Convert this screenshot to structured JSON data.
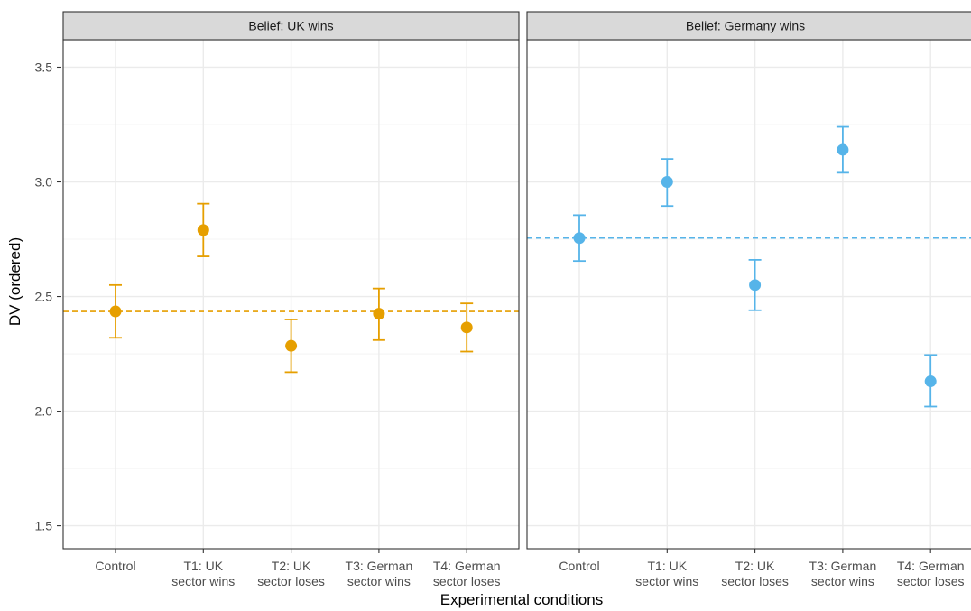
{
  "chart_data": {
    "type": "scatter",
    "ylabel": "DV (ordered)",
    "xlabel": "Experimental conditions",
    "ylim": [
      1.4,
      3.62
    ],
    "yticks": [
      1.5,
      2.0,
      2.5,
      3.0,
      3.5
    ],
    "ytick_labels": [
      "1.5",
      "2.0",
      "2.5",
      "3.0",
      "3.5"
    ],
    "grid": true,
    "categories": [
      [
        "Control"
      ],
      [
        "T1: UK",
        "sector wins"
      ],
      [
        "T2: UK",
        "sector loses"
      ],
      [
        "T3: German",
        "sector wins"
      ],
      [
        "T4: German",
        "sector loses"
      ]
    ],
    "panels": [
      {
        "strip": "Belief: UK wins",
        "color": "#E69F00",
        "reference": 2.435,
        "values": [
          2.435,
          2.79,
          2.285,
          2.425,
          2.365
        ],
        "lower": [
          2.32,
          2.675,
          2.17,
          2.31,
          2.26
        ],
        "upper": [
          2.55,
          2.905,
          2.4,
          2.535,
          2.47
        ]
      },
      {
        "strip": "Belief: Germany wins",
        "color": "#56B4E9",
        "reference": 2.755,
        "values": [
          2.755,
          3.0,
          2.55,
          3.14,
          2.13
        ],
        "lower": [
          2.655,
          2.895,
          2.44,
          3.04,
          2.02
        ],
        "upper": [
          2.855,
          3.1,
          2.66,
          3.24,
          2.245
        ]
      }
    ]
  }
}
